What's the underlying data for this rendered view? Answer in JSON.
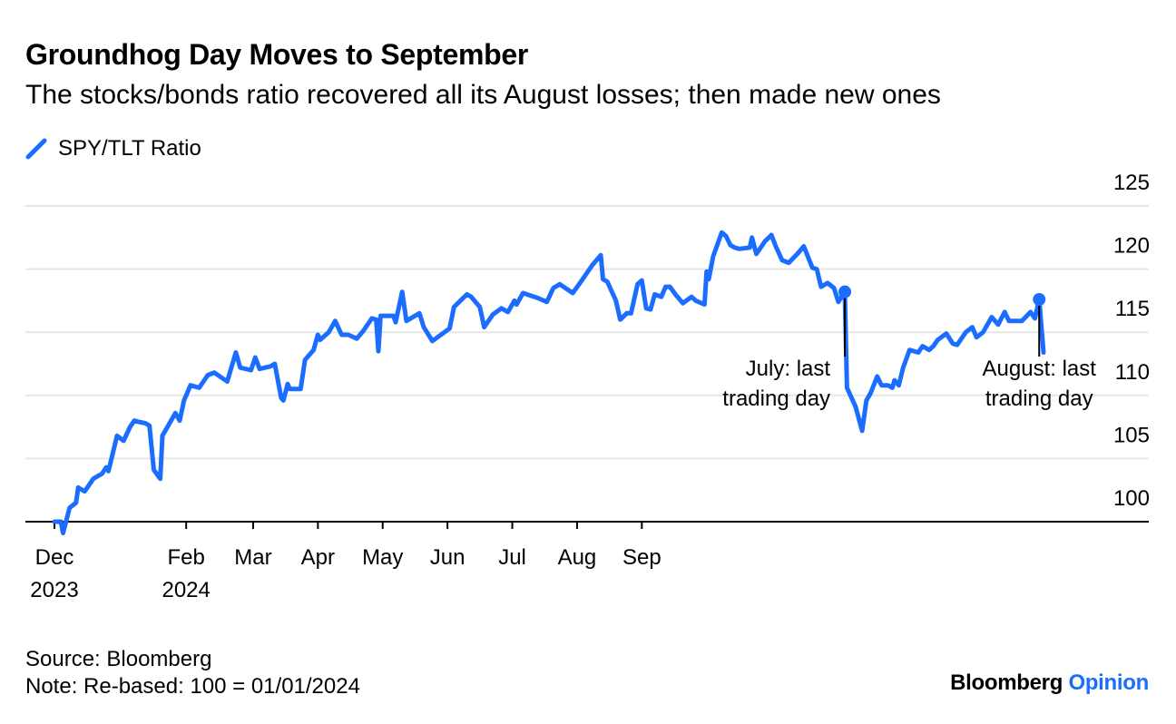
{
  "header": {
    "title": "Groundhog Day Moves to September",
    "subtitle": "The stocks/bonds ratio recovered all its August losses; then made new ones"
  },
  "footer": {
    "source": "Source: Bloomberg",
    "note": "Note: Re-based: 100 = 01/01/2024",
    "brand_primary": "Bloomberg",
    "brand_secondary": "Opinion"
  },
  "colors": {
    "line": "#1a6dff",
    "grid": "#e6e6e6",
    "axis": "#000000"
  },
  "chart_data": {
    "type": "line",
    "title": "Groundhog Day Moves to September",
    "subtitle": "The stocks/bonds ratio recovered all its August losses; then made new ones",
    "ylim": [
      100,
      125
    ],
    "yticks": [
      100,
      105,
      110,
      115,
      120,
      125
    ],
    "grid": true,
    "legend_position": "top-left",
    "series": [
      {
        "name": "SPY/TLT Ratio",
        "points": [
          [
            "2023-12-04",
            100.0
          ],
          [
            "2023-12-07",
            100.0
          ],
          [
            "2023-12-08",
            99.1
          ],
          [
            "2023-12-11",
            101.1
          ],
          [
            "2023-12-14",
            101.5
          ],
          [
            "2023-12-15",
            102.7
          ],
          [
            "2023-12-18",
            102.4
          ],
          [
            "2023-12-22",
            103.4
          ],
          [
            "2023-12-26",
            103.8
          ],
          [
            "2023-12-28",
            104.3
          ],
          [
            "2023-12-29",
            104.0
          ],
          [
            "2024-01-02",
            106.8
          ],
          [
            "2024-01-05",
            106.4
          ],
          [
            "2024-01-08",
            107.5
          ],
          [
            "2024-01-10",
            108.0
          ],
          [
            "2024-01-12",
            107.9
          ],
          [
            "2024-01-15",
            107.8
          ],
          [
            "2024-01-17",
            107.6
          ],
          [
            "2024-01-19",
            104.1
          ],
          [
            "2024-01-22",
            103.4
          ],
          [
            "2024-01-23",
            106.8
          ],
          [
            "2024-01-29",
            108.6
          ],
          [
            "2024-01-31",
            108.0
          ],
          [
            "2024-02-02",
            109.6
          ],
          [
            "2024-02-05",
            110.8
          ],
          [
            "2024-02-09",
            110.6
          ],
          [
            "2024-02-13",
            111.6
          ],
          [
            "2024-02-16",
            111.8
          ],
          [
            "2024-02-22",
            111.1
          ],
          [
            "2024-02-26",
            113.4
          ],
          [
            "2024-02-28",
            112.2
          ],
          [
            "2024-03-04",
            112.0
          ],
          [
            "2024-03-06",
            113.0
          ],
          [
            "2024-03-08",
            112.1
          ],
          [
            "2024-03-13",
            112.3
          ],
          [
            "2024-03-15",
            112.5
          ],
          [
            "2024-03-18",
            109.8
          ],
          [
            "2024-03-19",
            109.6
          ],
          [
            "2024-03-21",
            110.9
          ],
          [
            "2024-03-22",
            110.5
          ],
          [
            "2024-03-27",
            110.5
          ],
          [
            "2024-03-29",
            112.8
          ],
          [
            "2024-04-01",
            113.4
          ],
          [
            "2024-04-02",
            113.6
          ],
          [
            "2024-04-04",
            114.8
          ],
          [
            "2024-04-05",
            114.4
          ],
          [
            "2024-04-09",
            115.0
          ],
          [
            "2024-04-12",
            115.9
          ],
          [
            "2024-04-15",
            114.8
          ],
          [
            "2024-04-18",
            114.8
          ],
          [
            "2024-04-22",
            114.5
          ],
          [
            "2024-04-25",
            115.1
          ],
          [
            "2024-04-29",
            116.1
          ],
          [
            "2024-05-01",
            116.0
          ],
          [
            "2024-05-02",
            113.5
          ],
          [
            "2024-05-03",
            116.3
          ],
          [
            "2024-05-09",
            116.3
          ],
          [
            "2024-05-10",
            115.8
          ],
          [
            "2024-05-13",
            118.2
          ],
          [
            "2024-05-15",
            115.9
          ],
          [
            "2024-05-21",
            116.5
          ],
          [
            "2024-05-23",
            115.4
          ],
          [
            "2024-05-27",
            114.3
          ],
          [
            "2024-06-04",
            115.3
          ],
          [
            "2024-06-06",
            117.0
          ],
          [
            "2024-06-12",
            118.0
          ],
          [
            "2024-06-14",
            117.8
          ],
          [
            "2024-06-18",
            117.0
          ],
          [
            "2024-06-20",
            115.4
          ],
          [
            "2024-06-24",
            116.4
          ],
          [
            "2024-06-28",
            116.9
          ],
          [
            "2024-07-01",
            116.6
          ],
          [
            "2024-07-04",
            117.5
          ],
          [
            "2024-07-05",
            117.2
          ],
          [
            "2024-07-08",
            118.1
          ],
          [
            "2024-07-15",
            117.7
          ],
          [
            "2024-07-19",
            117.4
          ],
          [
            "2024-07-22",
            118.5
          ],
          [
            "2024-07-25",
            118.8
          ],
          [
            "2024-07-31",
            118.1
          ],
          [
            "2024-08-05",
            119.3
          ],
          [
            "2024-08-09",
            120.3
          ],
          [
            "2024-08-13",
            121.1
          ],
          [
            "2024-08-14",
            119.2
          ],
          [
            "2024-08-16",
            119.0
          ],
          [
            "2024-08-20",
            117.5
          ],
          [
            "2024-08-22",
            116.0
          ],
          [
            "2024-08-25",
            116.5
          ],
          [
            "2024-08-27",
            116.5
          ],
          [
            "2024-08-30",
            118.8
          ],
          [
            "2024-09-01",
            119.1
          ],
          [
            "2024-09-03",
            116.9
          ],
          [
            "2024-09-05",
            116.8
          ],
          [
            "2024-09-07",
            118.0
          ],
          [
            "2024-09-10",
            117.8
          ],
          [
            "2024-09-12",
            118.6
          ],
          [
            "2024-09-14",
            118.6
          ],
          [
            "2024-09-17",
            117.9
          ],
          [
            "2024-09-20",
            117.3
          ],
          [
            "2024-09-24",
            117.8
          ],
          [
            "2024-09-26",
            117.5
          ],
          [
            "2024-09-30",
            117.2
          ],
          [
            "2024-10-01",
            119.8
          ],
          [
            "2024-10-02",
            119.2
          ],
          [
            "2024-10-04",
            121.0
          ],
          [
            "2024-10-08",
            122.9
          ],
          [
            "2024-10-10",
            122.6
          ],
          [
            "2024-10-12",
            121.9
          ],
          [
            "2024-10-14",
            121.7
          ],
          [
            "2024-10-16",
            121.6
          ],
          [
            "2024-10-21",
            121.7
          ],
          [
            "2024-10-22",
            122.5
          ],
          [
            "2024-10-24",
            121.2
          ],
          [
            "2024-10-28",
            122.2
          ],
          [
            "2024-10-31",
            122.7
          ],
          [
            "2024-11-02",
            121.8
          ],
          [
            "2024-11-05",
            120.7
          ],
          [
            "2024-11-08",
            120.5
          ],
          [
            "2024-11-12",
            121.2
          ],
          [
            "2024-11-15",
            121.8
          ],
          [
            "2024-11-19",
            120.1
          ],
          [
            "2024-11-21",
            120.0
          ],
          [
            "2024-11-23",
            118.6
          ],
          [
            "2024-11-26",
            118.9
          ],
          [
            "2024-11-29",
            118.5
          ],
          [
            "2024-12-01",
            117.4
          ],
          [
            "2024-12-04",
            118.2
          ],
          [
            "2024-12-05",
            110.6
          ],
          [
            "2024-12-09",
            109.1
          ],
          [
            "2024-12-12",
            107.2
          ],
          [
            "2024-12-14",
            109.6
          ],
          [
            "2024-12-16",
            110.2
          ],
          [
            "2024-12-19",
            111.5
          ],
          [
            "2024-12-21",
            110.8
          ],
          [
            "2024-12-24",
            110.8
          ],
          [
            "2024-12-26",
            110.6
          ],
          [
            "2024-12-27",
            111.2
          ],
          [
            "2024-12-29",
            110.8
          ],
          [
            "2024-12-31",
            112.2
          ],
          [
            "2025-01-03",
            113.6
          ],
          [
            "2025-01-07",
            113.4
          ],
          [
            "2025-01-09",
            113.9
          ],
          [
            "2025-01-12",
            113.6
          ],
          [
            "2025-01-14",
            113.9
          ],
          [
            "2025-01-16",
            114.4
          ],
          [
            "2025-01-20",
            114.9
          ],
          [
            "2025-01-23",
            114.1
          ],
          [
            "2025-01-25",
            114.0
          ],
          [
            "2025-01-29",
            115.0
          ],
          [
            "2025-02-01",
            115.4
          ],
          [
            "2025-02-03",
            114.6
          ],
          [
            "2025-02-06",
            115.0
          ],
          [
            "2025-02-10",
            116.2
          ],
          [
            "2025-02-13",
            115.6
          ],
          [
            "2025-02-16",
            116.6
          ],
          [
            "2025-02-18",
            115.9
          ],
          [
            "2025-02-24",
            115.9
          ],
          [
            "2025-02-28",
            116.6
          ],
          [
            "2025-03-02",
            116.1
          ],
          [
            "2025-03-04",
            117.6
          ],
          [
            "2025-03-06",
            113.4
          ]
        ]
      }
    ],
    "annotations": [
      {
        "label_line1": "July: last",
        "label_line2": "trading day",
        "at": "2024-12-04",
        "value": 118.2
      },
      {
        "label_line1": "August: last",
        "label_line2": "trading day",
        "at": "2025-03-04",
        "value": 117.6
      }
    ],
    "x_ticks": [
      {
        "at": "2023-12-04",
        "label": "Dec",
        "sub": "2023"
      },
      {
        "at": "2024-02-03",
        "label": "Feb",
        "sub": "2024"
      },
      {
        "at": "2024-03-05",
        "label": "Mar",
        "sub": ""
      },
      {
        "at": "2024-04-04",
        "label": "Apr",
        "sub": ""
      },
      {
        "at": "2024-05-04",
        "label": "May",
        "sub": ""
      },
      {
        "at": "2024-06-03",
        "label": "Jun",
        "sub": ""
      },
      {
        "at": "2024-07-03",
        "label": "Jul",
        "sub": ""
      },
      {
        "at": "2024-08-02",
        "label": "Aug",
        "sub": ""
      },
      {
        "at": "2024-09-01",
        "label": "Sep",
        "sub": ""
      }
    ]
  }
}
